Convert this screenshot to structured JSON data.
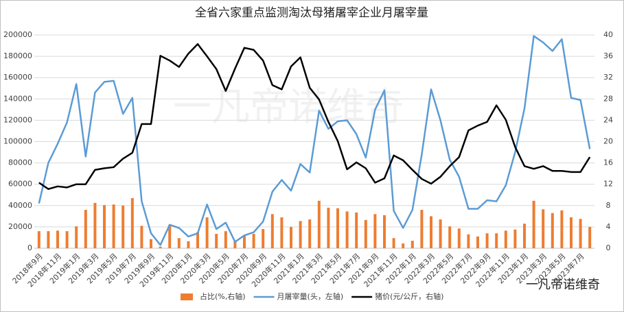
{
  "chart_data": {
    "type": "combo",
    "title": "全省六家重点监测淘汰母猪屠宰企业月屠宰量",
    "watermark": "一凡帝诺维奇",
    "corner_label": "一凡帝诺维奇",
    "categories": [
      "2018年9月",
      null,
      "2018年11月",
      null,
      "2019年1月",
      null,
      "2019年3月",
      null,
      "2019年5月",
      null,
      "2019年7月",
      null,
      "2019年9月",
      null,
      "2019年11月",
      null,
      "2020年1月",
      null,
      "2020年3月",
      null,
      "2020年5月",
      null,
      "2020年7月",
      null,
      "2020年9月",
      null,
      "2020年11月",
      null,
      "2021年1月",
      null,
      "2021年3月",
      null,
      "2021年5月",
      null,
      "2021年7月",
      null,
      "2021年9月",
      null,
      "2021年11月",
      null,
      "2022年1月",
      null,
      "2022年3月",
      null,
      "2022年5月",
      null,
      "2022年7月",
      null,
      "2022年9月",
      null,
      "2022年11月",
      null,
      "2023年1月",
      null,
      "2023年3月",
      null,
      "2023年5月",
      null,
      "2023年7月",
      null
    ],
    "series": [
      {
        "name": "占比(%,右轴)",
        "type": "bar",
        "axis": "y2",
        "color": "#ed7d31",
        "values": [
          3.2,
          3.2,
          3.3,
          3.2,
          4.1,
          7.2,
          8.5,
          8.1,
          8.2,
          8.0,
          9.4,
          4.2,
          1.7,
          0.3,
          4.4,
          1.9,
          1.3,
          3.0,
          5.8,
          2.7,
          3.2,
          1.4,
          2.3,
          2.7,
          3.6,
          6.4,
          5.8,
          4.0,
          5.1,
          5.4,
          8.9,
          7.6,
          7.5,
          6.9,
          6.7,
          5.3,
          6.4,
          6.2,
          1.9,
          0.9,
          1.4,
          7.2,
          6.0,
          5.4,
          4.1,
          3.7,
          2.6,
          2.2,
          2.8,
          2.8,
          3.3,
          3.5,
          4.6,
          8.9,
          7.3,
          6.6,
          7.1,
          5.8,
          5.5,
          4.0
        ]
      },
      {
        "name": "月屠宰量(头，左轴)",
        "type": "line",
        "axis": "y",
        "color": "#5b9bd5",
        "values": [
          42000,
          80000,
          98000,
          118000,
          154000,
          86000,
          146000,
          156000,
          157000,
          126000,
          141000,
          44000,
          14000,
          3000,
          22000,
          19000,
          11000,
          14000,
          41000,
          18000,
          24000,
          6000,
          12000,
          15000,
          25000,
          53000,
          64000,
          54000,
          79000,
          71000,
          129000,
          112000,
          119000,
          120000,
          107000,
          85000,
          130000,
          148000,
          35000,
          19000,
          36000,
          88000,
          149000,
          120000,
          83000,
          67000,
          37000,
          37000,
          45000,
          44000,
          59000,
          90000,
          131000,
          199000,
          193000,
          185000,
          196000,
          141000,
          139000,
          93000
        ]
      },
      {
        "name": "猪价(元/公斤，右轴)",
        "type": "line",
        "axis": "y2",
        "color": "#000000",
        "values": [
          12.3,
          11.1,
          11.6,
          11.4,
          12.0,
          12.0,
          14.7,
          15.0,
          15.2,
          16.8,
          17.9,
          23.3,
          23.3,
          36.1,
          35.2,
          34.0,
          36.5,
          38.3,
          36.0,
          33.6,
          29.5,
          33.7,
          37.6,
          37.2,
          35.2,
          30.6,
          29.8,
          34.1,
          35.8,
          30.1,
          27.9,
          23.7,
          20.1,
          14.8,
          16.1,
          15.0,
          12.3,
          13.1,
          17.4,
          16.5,
          14.7,
          13.0,
          12.1,
          13.4,
          15.4,
          17.1,
          22.1,
          23.0,
          23.7,
          26.8,
          24.1,
          19.0,
          15.4,
          14.9,
          15.4,
          14.5,
          14.5,
          14.3,
          14.3,
          17.1
        ]
      }
    ],
    "ylim": [
      0,
      200000
    ],
    "yticks": [
      0,
      20000,
      40000,
      60000,
      80000,
      100000,
      120000,
      140000,
      160000,
      180000,
      200000
    ],
    "y2lim": [
      0,
      40
    ],
    "y2ticks": [
      0,
      4,
      8,
      12,
      16,
      20,
      24,
      28,
      32,
      36,
      40
    ],
    "grid": true,
    "legend": "bottom"
  }
}
